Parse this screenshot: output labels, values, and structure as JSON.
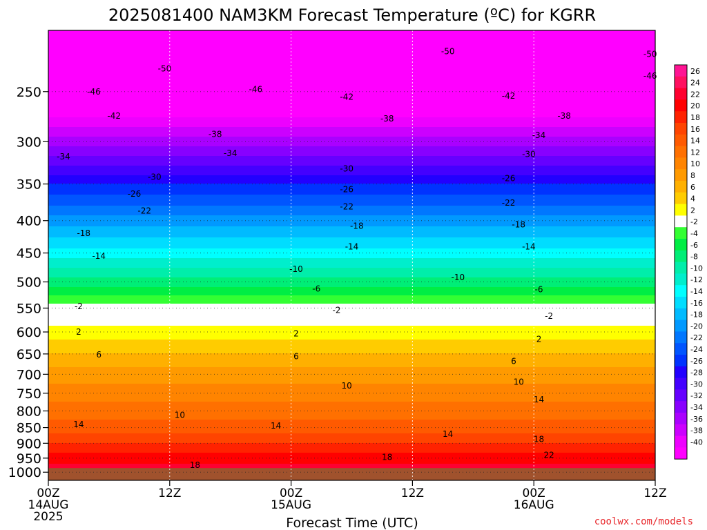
{
  "chart_data": {
    "type": "heatmap",
    "title": "2025081400 NAM3KM Forecast Temperature (ºC) for KGRR",
    "xlabel": "Forecast Time (UTC)",
    "ylabel": "",
    "x_ticks": [
      {
        "hour": 0,
        "line1": "00Z",
        "line2": "14AUG",
        "line3": "2025"
      },
      {
        "hour": 12,
        "line1": "12Z",
        "line2": "",
        "line3": ""
      },
      {
        "hour": 24,
        "line1": "00Z",
        "line2": "15AUG",
        "line3": ""
      },
      {
        "hour": 36,
        "line1": "12Z",
        "line2": "",
        "line3": ""
      },
      {
        "hour": 48,
        "line1": "00Z",
        "line2": "16AUG",
        "line3": ""
      },
      {
        "hour": 60,
        "line1": "12Z",
        "line2": "",
        "line3": ""
      }
    ],
    "xlim": [
      0,
      60
    ],
    "y_ticks": [
      "250",
      "300",
      "350",
      "400",
      "450",
      "500",
      "550",
      "600",
      "650",
      "700",
      "750",
      "800",
      "850",
      "900",
      "950",
      "1000"
    ],
    "y_tick_values": [
      250,
      300,
      350,
      400,
      450,
      500,
      550,
      600,
      650,
      700,
      750,
      800,
      850,
      900,
      950,
      1000
    ],
    "ylim": [
      1030,
      200
    ],
    "y_scale": "log-pressure (inverted)",
    "grid": "dotted horizontal and vertical",
    "ground_color": "#a0522d",
    "temperature_profile": {
      "pressure": [
        205,
        250,
        300,
        350,
        400,
        450,
        500,
        550,
        600,
        650,
        700,
        750,
        800,
        850,
        900,
        950,
        985
      ],
      "temp_c": [
        -54,
        -45,
        -35,
        -26,
        -19,
        -13,
        -7,
        -1,
        3,
        6,
        9,
        11,
        13,
        15,
        18,
        21,
        23
      ]
    },
    "colorbar": {
      "labels": [
        "26",
        "24",
        "22",
        "20",
        "18",
        "16",
        "14",
        "12",
        "10",
        "8",
        "6",
        "4",
        "2",
        "-2",
        "-4",
        "-6",
        "-8",
        "-10",
        "-12",
        "-14",
        "-16",
        "-18",
        "-20",
        "-22",
        "-24",
        "-26",
        "-28",
        "-30",
        "-32",
        "-34",
        "-36",
        "-38",
        "-40"
      ],
      "colors": [
        "#ff1493",
        "#ff1060",
        "#ff0030",
        "#ff0000",
        "#ff2200",
        "#ff4400",
        "#ff5a00",
        "#ff7000",
        "#ff8400",
        "#ff9a00",
        "#ffb000",
        "#ffcc00",
        "#ffff00",
        "#ffffff",
        "#33ff33",
        "#00ee44",
        "#00ee77",
        "#00eeaa",
        "#00eecc",
        "#00ffff",
        "#00ddff",
        "#00bbff",
        "#0099ff",
        "#0077ff",
        "#0055ff",
        "#0033ff",
        "#2200ff",
        "#4400ff",
        "#6600ff",
        "#8800ff",
        "#aa00ff",
        "#cc00ff",
        "#ee00ff"
      ],
      "bottom_color": "#ff00ff"
    },
    "contour_labels": [
      {
        "text": "-50",
        "t": 39.5,
        "p": 216
      },
      {
        "text": "-50",
        "t": 11.5,
        "p": 230
      },
      {
        "text": "-50",
        "t": 59.5,
        "p": 218
      },
      {
        "text": "-46",
        "t": 4.5,
        "p": 250
      },
      {
        "text": "-46",
        "t": 20.5,
        "p": 248
      },
      {
        "text": "-46",
        "t": 59.5,
        "p": 236
      },
      {
        "text": "-42",
        "t": 6.5,
        "p": 273
      },
      {
        "text": "-42",
        "t": 29.5,
        "p": 255
      },
      {
        "text": "-42",
        "t": 45.5,
        "p": 254
      },
      {
        "text": "-38",
        "t": 16.5,
        "p": 292
      },
      {
        "text": "-38",
        "t": 33.5,
        "p": 276
      },
      {
        "text": "-38",
        "t": 51.0,
        "p": 273
      },
      {
        "text": "-34",
        "t": 1.5,
        "p": 317
      },
      {
        "text": "-34",
        "t": 18.0,
        "p": 313
      },
      {
        "text": "-34",
        "t": 48.5,
        "p": 293
      },
      {
        "text": "-30",
        "t": 10.5,
        "p": 341
      },
      {
        "text": "-30",
        "t": 29.5,
        "p": 331
      },
      {
        "text": "-30",
        "t": 47.5,
        "p": 314
      },
      {
        "text": "-26",
        "t": 8.5,
        "p": 363
      },
      {
        "text": "-26",
        "t": 29.5,
        "p": 357
      },
      {
        "text": "-26",
        "t": 45.5,
        "p": 343
      },
      {
        "text": "-22",
        "t": 9.5,
        "p": 386
      },
      {
        "text": "-22",
        "t": 29.5,
        "p": 380
      },
      {
        "text": "-22",
        "t": 45.5,
        "p": 375
      },
      {
        "text": "-18",
        "t": 3.5,
        "p": 419
      },
      {
        "text": "-18",
        "t": 30.5,
        "p": 408
      },
      {
        "text": "-18",
        "t": 46.5,
        "p": 406
      },
      {
        "text": "-14",
        "t": 5.0,
        "p": 455
      },
      {
        "text": "-14",
        "t": 30.0,
        "p": 440
      },
      {
        "text": "-14",
        "t": 47.5,
        "p": 440
      },
      {
        "text": "-10",
        "t": 24.5,
        "p": 477
      },
      {
        "text": "-10",
        "t": 40.5,
        "p": 492
      },
      {
        "text": "-6",
        "t": 26.5,
        "p": 513
      },
      {
        "text": "-6",
        "t": 48.5,
        "p": 514
      },
      {
        "text": "-2",
        "t": 3.0,
        "p": 547
      },
      {
        "text": "-2",
        "t": 28.5,
        "p": 554
      },
      {
        "text": "-2",
        "t": 49.5,
        "p": 566
      },
      {
        "text": "2",
        "t": 3.0,
        "p": 600
      },
      {
        "text": "2",
        "t": 24.5,
        "p": 604
      },
      {
        "text": "2",
        "t": 48.5,
        "p": 616
      },
      {
        "text": "6",
        "t": 5.0,
        "p": 652
      },
      {
        "text": "6",
        "t": 24.5,
        "p": 656
      },
      {
        "text": "6",
        "t": 46.0,
        "p": 668
      },
      {
        "text": "10",
        "t": 29.5,
        "p": 730
      },
      {
        "text": "10",
        "t": 46.5,
        "p": 720
      },
      {
        "text": "10",
        "t": 13.0,
        "p": 812
      },
      {
        "text": "14",
        "t": 3.0,
        "p": 840
      },
      {
        "text": "14",
        "t": 22.5,
        "p": 845
      },
      {
        "text": "14",
        "t": 39.5,
        "p": 870
      },
      {
        "text": "14",
        "t": 48.5,
        "p": 768
      },
      {
        "text": "18",
        "t": 14.5,
        "p": 975
      },
      {
        "text": "18",
        "t": 33.5,
        "p": 947
      },
      {
        "text": "18",
        "t": 48.5,
        "p": 887
      },
      {
        "text": "22",
        "t": 49.5,
        "p": 940
      }
    ]
  },
  "credit": "coolwx.com/models"
}
